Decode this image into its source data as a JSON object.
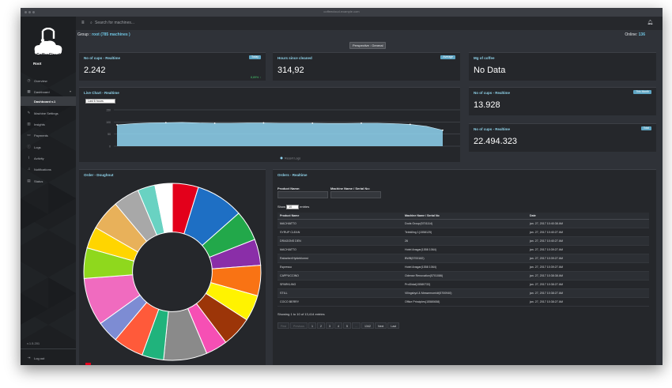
{
  "window": {
    "title": "coffeecloud.example.com"
  },
  "sidebar": {
    "brand": "CoffeeCloud",
    "user": "Root",
    "items": [
      {
        "label": "Overview",
        "icon": "clock-icon"
      },
      {
        "label": "Dashboard",
        "icon": "grid-icon"
      },
      {
        "label": "Dashboard v.1",
        "icon": ""
      },
      {
        "label": "Machine Settings",
        "icon": "wrench-icon"
      },
      {
        "label": "Insights",
        "icon": "bar-chart-icon"
      },
      {
        "label": "Payments",
        "icon": "credit-card-icon"
      },
      {
        "label": "Logs",
        "icon": "info-icon"
      },
      {
        "label": "Activity",
        "icon": "pulse-icon"
      },
      {
        "label": "Notifications",
        "icon": "bell-icon"
      },
      {
        "label": "Status",
        "icon": "monitor-icon"
      }
    ],
    "version": "v.1.5.201",
    "footer": [
      {
        "label": "Settings",
        "icon": "gear-icon"
      },
      {
        "label": "Log out",
        "icon": "logout-icon"
      }
    ]
  },
  "topbar": {
    "search_placeholder": "Search for machines..."
  },
  "header": {
    "group_prefix": "Group : ",
    "group_name": "root",
    "group_count": "(785 machines )",
    "online_label": "Online: ",
    "online_value": "136",
    "perspective": "Perspective : General"
  },
  "panels": {
    "cups_realtime": {
      "title": "No of cups - Realtime",
      "button": "Today",
      "value": "2.242",
      "trend": "8,89% ↑"
    },
    "hours_cleaned": {
      "title": "Hours since cleaned",
      "button": "Average",
      "value": "314,92"
    },
    "mg_coffee": {
      "title": "Mg of coffee",
      "value": "No Data"
    },
    "cups_month": {
      "title": "No of cups - Realtime",
      "button": "This Month",
      "value": "13.928"
    },
    "cups_total": {
      "title": "No of cups - Realtime",
      "button": "Total",
      "value": "22.494.323"
    },
    "live_chart": {
      "title": "Live Chart - Realtime",
      "range": "Last 6 hours",
      "legend": "Recent Logs"
    },
    "doughnut": {
      "title": "Order - Doughnut"
    },
    "orders": {
      "title": "Orders - Realtime",
      "product_label": "Product Name:",
      "machine_label": "Machine Name / Serial No:",
      "show_label": "Show",
      "show_value": "10",
      "entries_label": "entries",
      "columns": [
        "Product Name",
        "Machine Name / Serial No",
        "Date"
      ],
      "rows": [
        [
          "MACHIATTO",
          "Dods Group(5701114)",
          "jan. 27, 2017 10:40:38 AM"
        ],
        [
          "SYRUP CLEAN",
          "Teleklling 1(1558125)",
          "jan. 27, 2017 10:40:27 AM"
        ],
        [
          "DRAGONS DEN",
          "26",
          "jan. 27, 2017 10:40:27 AM"
        ],
        [
          "MACHIATTO",
          "Hotel Ansgar(1558 1064)",
          "jan. 27, 2017 10:39:27 AM"
        ],
        [
          "Rabarber/Hyldeblomst",
          "BWB(5700182)",
          "jan. 27, 2017 10:39:27 AM"
        ],
        [
          "Espresso",
          "Hotel Ansgar(1558 1064)",
          "jan. 27, 2017 10:39:27 AM"
        ],
        [
          "CAPPUCCINO",
          "Odense Renovation(5701086)",
          "jan. 27, 2017 10:38:38 AM"
        ],
        [
          "SPARKLING",
          "ProDidat(15580733)",
          "jan. 27, 2017 10:38:27 AM"
        ],
        [
          "STILL",
          "Vilingsbyd & Messemomidt(5700940)",
          "jan. 27, 2017 10:38:27 AM"
        ],
        [
          "COCO BERRY",
          "Office Principles(15580658)",
          "jan. 27, 2017 10:38:27 AM"
        ]
      ],
      "showing": "Showing 1 to 10 of 13,414 entries",
      "pager": [
        "First",
        "Previous",
        "1",
        "2",
        "3",
        "4",
        "5",
        "...",
        "1342",
        "Next",
        "Last"
      ]
    }
  },
  "chart_data": [
    {
      "type": "area",
      "title": "Live Chart - Realtime",
      "y_ticks": [
        "150",
        "100",
        "50",
        "0"
      ],
      "x": [
        0,
        1,
        2,
        3,
        4,
        5,
        6,
        7,
        8,
        9,
        10,
        11,
        12,
        13,
        14,
        15,
        16,
        17,
        18,
        19,
        20
      ],
      "series": [
        {
          "name": "Recent Logs",
          "values": [
            88,
            93,
            96,
            97,
            98,
            96,
            95,
            95,
            96,
            96,
            95,
            95,
            95,
            94,
            94,
            95,
            95,
            93,
            90,
            82,
            66
          ]
        }
      ],
      "ylim": [
        0,
        150
      ],
      "grid": true,
      "color": "#8fd3f0"
    },
    {
      "type": "pie",
      "title": "Order - Doughnut",
      "hole": 0.45,
      "values": [
        6,
        11,
        7,
        6,
        7,
        6,
        7,
        5,
        10,
        5,
        7,
        5,
        11,
        7,
        5,
        7,
        6,
        4,
        4
      ],
      "colors": [
        "#e3001b",
        "#1e6fc4",
        "#22a84a",
        "#8a2ea8",
        "#f97314",
        "#fff300",
        "#9c3508",
        "#f64fb4",
        "#8a8a8a",
        "#20b37c",
        "#ff5a3a",
        "#7d8cd3",
        "#f06bbf",
        "#8fd81d",
        "#ffd500",
        "#e8b15a",
        "#a8a8a8",
        "#69d2c2",
        "#ffffff"
      ]
    }
  ]
}
